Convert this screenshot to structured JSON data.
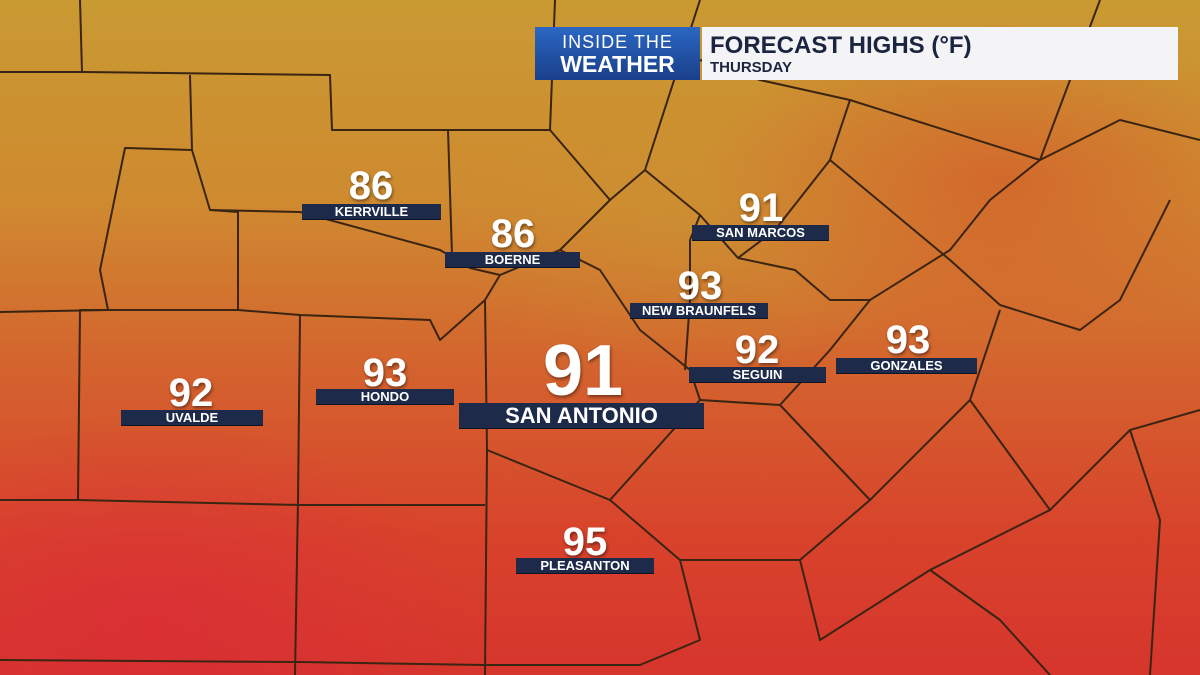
{
  "header": {
    "logo_top": "INSIDE THE",
    "logo_bottom": "WEATHER",
    "title": "FORECAST HIGHS (°F)",
    "subtitle": "THURSDAY"
  },
  "cities": [
    {
      "name": "KERRVILLE",
      "temp": "86"
    },
    {
      "name": "BOERNE",
      "temp": "86"
    },
    {
      "name": "SAN MARCOS",
      "temp": "91"
    },
    {
      "name": "NEW BRAUNFELS",
      "temp": "93"
    },
    {
      "name": "SEGUIN",
      "temp": "92"
    },
    {
      "name": "GONZALES",
      "temp": "93"
    },
    {
      "name": "UVALDE",
      "temp": "92"
    },
    {
      "name": "HONDO",
      "temp": "93"
    },
    {
      "name": "SAN ANTONIO",
      "temp": "91"
    },
    {
      "name": "PLEASANTON",
      "temp": "95"
    }
  ]
}
